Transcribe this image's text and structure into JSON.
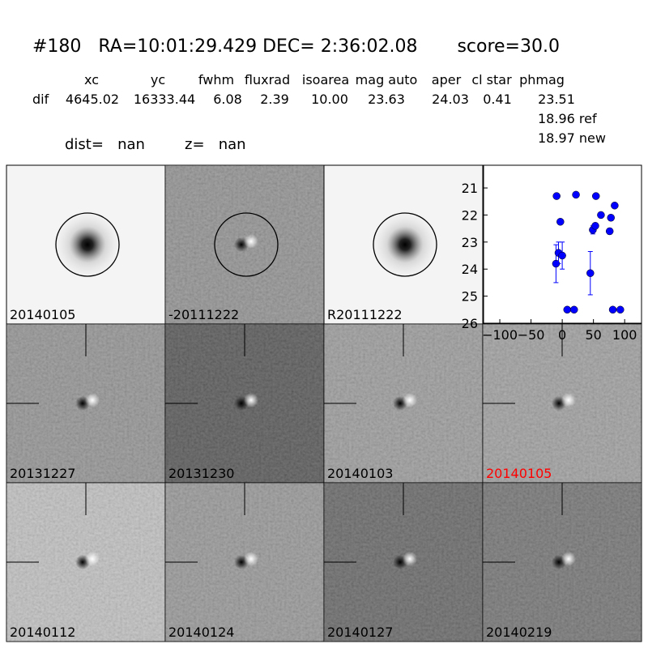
{
  "header": {
    "title": "#180   RA=10:01:29.429 DEC= 2:36:02.08       score=30.0"
  },
  "table": {
    "columns": [
      "xc",
      "yc",
      "fwhm",
      "fluxrad",
      "isoarea",
      "mag auto",
      "aper",
      "cl star",
      "phmag"
    ],
    "row_label": "dif",
    "row": [
      "4645.02",
      "16333.44",
      "6.08",
      "2.39",
      "10.00",
      "23.63",
      "24.03",
      "0.41",
      "23.51"
    ],
    "extra": [
      "18.96 ref",
      "18.97 new"
    ],
    "dist": "dist=   nan",
    "z": "z=   nan"
  },
  "stamps": [
    "20140105",
    "-20111222",
    "R20111222",
    "20131227",
    "20131230",
    "20140103",
    "20140105",
    "20140112",
    "20140124",
    "20140127",
    "20140219"
  ],
  "chart_data": {
    "type": "scatter",
    "x": [
      -9,
      -3,
      -10,
      -6,
      0,
      8,
      19,
      22,
      54,
      62,
      78,
      76,
      84,
      45,
      49,
      53,
      81,
      93
    ],
    "series": [
      {
        "color": "#0000ff",
        "values": [
          21.3,
          22.25,
          23.8,
          23.4,
          23.5,
          25.5,
          25.5,
          21.25,
          21.3,
          22.0,
          22.1,
          22.6,
          21.65,
          24.15,
          22.55,
          22.4,
          25.5,
          25.5
        ],
        "errors": [
          0.05,
          0.08,
          0.7,
          0.4,
          0.5,
          0.05,
          0.05,
          0.05,
          0.05,
          0.05,
          0.1,
          0.1,
          0.08,
          0.8,
          0.15,
          0.1,
          0.05,
          0.05
        ]
      }
    ],
    "xlim": [
      -126,
      127
    ],
    "ylim": [
      26,
      20.16
    ],
    "xticks": [
      {
        "value": -100,
        "label": "−100"
      },
      {
        "value": -50,
        "label": "−50"
      },
      0,
      50,
      100
    ],
    "yticks": [
      21,
      22,
      23,
      24,
      25,
      26
    ]
  }
}
